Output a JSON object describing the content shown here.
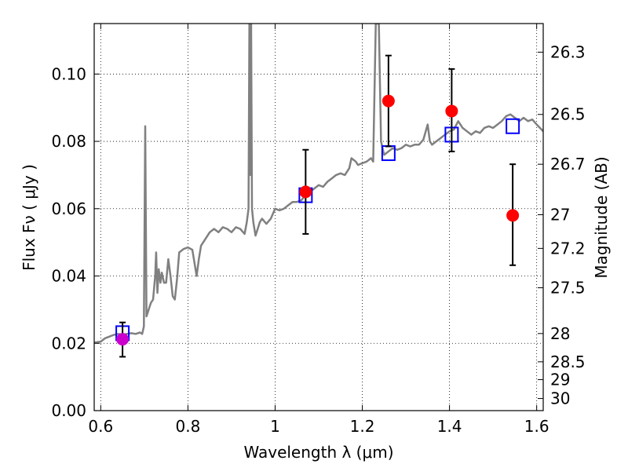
{
  "chart_data": {
    "type": "scatter",
    "title": "",
    "xlabel": "Wavelength  λ (μm)",
    "ylabel": "Flux  Fν  ( μJy )",
    "ylabel_right": "Magnitude (AB)",
    "xlim": [
      0.585,
      1.615
    ],
    "ylim": [
      0.0,
      0.115
    ],
    "grid": true,
    "x_ticks": [
      {
        "value": 0.6,
        "label": "0.6"
      },
      {
        "value": 0.8,
        "label": "0.8"
      },
      {
        "value": 1.0,
        "label": "1"
      },
      {
        "value": 1.2,
        "label": "1.2"
      },
      {
        "value": 1.4,
        "label": "1.4"
      },
      {
        "value": 1.6,
        "label": "1.6"
      }
    ],
    "y_ticks": [
      {
        "value": 0.0,
        "label": "0.00"
      },
      {
        "value": 0.02,
        "label": "0.02"
      },
      {
        "value": 0.04,
        "label": "0.04"
      },
      {
        "value": 0.06,
        "label": "0.06"
      },
      {
        "value": 0.08,
        "label": "0.08"
      },
      {
        "value": 0.1,
        "label": "0.10"
      }
    ],
    "right_ticks": [
      {
        "flux": 0.1065,
        "label": "26.3"
      },
      {
        "flux": 0.088,
        "label": "26.5"
      },
      {
        "flux": 0.0732,
        "label": "26.7"
      },
      {
        "flux": 0.0582,
        "label": "27"
      },
      {
        "flux": 0.0482,
        "label": "27.2"
      },
      {
        "flux": 0.0365,
        "label": "27.5"
      },
      {
        "flux": 0.0229,
        "label": "28"
      },
      {
        "flux": 0.0145,
        "label": "28.5"
      },
      {
        "flux": 0.0092,
        "label": "29"
      },
      {
        "flux": 0.0036,
        "label": "30"
      }
    ],
    "series": [
      {
        "kind": "spectrum",
        "color": "#808080",
        "points": [
          [
            0.585,
            0.0202
          ],
          [
            0.6,
            0.0205
          ],
          [
            0.61,
            0.0215
          ],
          [
            0.62,
            0.022
          ],
          [
            0.63,
            0.0225
          ],
          [
            0.64,
            0.0228
          ],
          [
            0.65,
            0.0226
          ],
          [
            0.66,
            0.0228
          ],
          [
            0.67,
            0.023
          ],
          [
            0.68,
            0.0228
          ],
          [
            0.69,
            0.0232
          ],
          [
            0.695,
            0.0228
          ],
          [
            0.699,
            0.025
          ],
          [
            0.702,
            0.0845
          ],
          [
            0.705,
            0.028
          ],
          [
            0.71,
            0.03
          ],
          [
            0.715,
            0.032
          ],
          [
            0.72,
            0.033
          ],
          [
            0.725,
            0.04
          ],
          [
            0.727,
            0.047
          ],
          [
            0.73,
            0.035
          ],
          [
            0.733,
            0.042
          ],
          [
            0.737,
            0.038
          ],
          [
            0.74,
            0.041
          ],
          [
            0.745,
            0.038
          ],
          [
            0.75,
            0.038
          ],
          [
            0.755,
            0.045
          ],
          [
            0.76,
            0.04
          ],
          [
            0.765,
            0.034
          ],
          [
            0.77,
            0.033
          ],
          [
            0.775,
            0.039
          ],
          [
            0.78,
            0.047
          ],
          [
            0.79,
            0.048
          ],
          [
            0.8,
            0.0485
          ],
          [
            0.81,
            0.0478
          ],
          [
            0.815,
            0.044
          ],
          [
            0.82,
            0.04
          ],
          [
            0.825,
            0.045
          ],
          [
            0.83,
            0.049
          ],
          [
            0.84,
            0.051
          ],
          [
            0.85,
            0.053
          ],
          [
            0.86,
            0.054
          ],
          [
            0.87,
            0.053
          ],
          [
            0.88,
            0.0545
          ],
          [
            0.89,
            0.054
          ],
          [
            0.9,
            0.053
          ],
          [
            0.91,
            0.0545
          ],
          [
            0.92,
            0.054
          ],
          [
            0.93,
            0.0525
          ],
          [
            0.935,
            0.056
          ],
          [
            0.939,
            0.06
          ],
          [
            0.941,
            0.115
          ],
          [
            0.943,
            0.07
          ],
          [
            0.945,
            0.115
          ],
          [
            0.947,
            0.06
          ],
          [
            0.95,
            0.056
          ],
          [
            0.955,
            0.052
          ],
          [
            0.96,
            0.054
          ],
          [
            0.965,
            0.056
          ],
          [
            0.97,
            0.057
          ],
          [
            0.98,
            0.0555
          ],
          [
            0.99,
            0.057
          ],
          [
            1.0,
            0.06
          ],
          [
            1.01,
            0.0595
          ],
          [
            1.02,
            0.06
          ],
          [
            1.03,
            0.061
          ],
          [
            1.04,
            0.062
          ],
          [
            1.05,
            0.062
          ],
          [
            1.06,
            0.0625
          ],
          [
            1.07,
            0.064
          ],
          [
            1.08,
            0.065
          ],
          [
            1.09,
            0.066
          ],
          [
            1.1,
            0.067
          ],
          [
            1.11,
            0.0665
          ],
          [
            1.12,
            0.068
          ],
          [
            1.13,
            0.069
          ],
          [
            1.14,
            0.07
          ],
          [
            1.15,
            0.0705
          ],
          [
            1.16,
            0.07
          ],
          [
            1.17,
            0.072
          ],
          [
            1.175,
            0.075
          ],
          [
            1.185,
            0.074
          ],
          [
            1.19,
            0.073
          ],
          [
            1.2,
            0.0735
          ],
          [
            1.21,
            0.074
          ],
          [
            1.22,
            0.075
          ],
          [
            1.225,
            0.074
          ],
          [
            1.231,
            0.115
          ],
          [
            1.238,
            0.115
          ],
          [
            1.243,
            0.08
          ],
          [
            1.25,
            0.076
          ],
          [
            1.26,
            0.077
          ],
          [
            1.27,
            0.078
          ],
          [
            1.28,
            0.0775
          ],
          [
            1.29,
            0.078
          ],
          [
            1.3,
            0.079
          ],
          [
            1.31,
            0.0785
          ],
          [
            1.32,
            0.079
          ],
          [
            1.33,
            0.079
          ],
          [
            1.34,
            0.0805
          ],
          [
            1.35,
            0.085
          ],
          [
            1.355,
            0.08
          ],
          [
            1.36,
            0.079
          ],
          [
            1.37,
            0.08
          ],
          [
            1.38,
            0.081
          ],
          [
            1.39,
            0.082
          ],
          [
            1.4,
            0.083
          ],
          [
            1.41,
            0.0835
          ],
          [
            1.42,
            0.086
          ],
          [
            1.43,
            0.084
          ],
          [
            1.44,
            0.083
          ],
          [
            1.45,
            0.082
          ],
          [
            1.46,
            0.083
          ],
          [
            1.47,
            0.0825
          ],
          [
            1.48,
            0.084
          ],
          [
            1.49,
            0.0845
          ],
          [
            1.5,
            0.084
          ],
          [
            1.51,
            0.085
          ],
          [
            1.52,
            0.086
          ],
          [
            1.53,
            0.0875
          ],
          [
            1.54,
            0.088
          ],
          [
            1.55,
            0.087
          ],
          [
            1.56,
            0.086
          ],
          [
            1.57,
            0.087
          ],
          [
            1.58,
            0.086
          ],
          [
            1.59,
            0.0865
          ],
          [
            1.6,
            0.085
          ],
          [
            1.615,
            0.083
          ]
        ]
      },
      {
        "kind": "model_photometry",
        "marker": "open-square",
        "color": "#0000ff",
        "points": [
          [
            0.65,
            0.023
          ],
          [
            1.07,
            0.064
          ],
          [
            1.26,
            0.0765
          ],
          [
            1.405,
            0.082
          ],
          [
            1.545,
            0.0845
          ]
        ]
      },
      {
        "kind": "measured_photometry",
        "marker": "filled-circle",
        "points": [
          {
            "x": 0.65,
            "y": 0.0212,
            "err_low": 0.0052,
            "err_high": 0.005,
            "color": "#cc00cc"
          },
          {
            "x": 1.07,
            "y": 0.065,
            "err_low": 0.0125,
            "err_high": 0.0125,
            "color": "#ff0000"
          },
          {
            "x": 1.26,
            "y": 0.092,
            "err_low": 0.0135,
            "err_high": 0.0135,
            "color": "#ff0000"
          },
          {
            "x": 1.405,
            "y": 0.089,
            "err_low": 0.012,
            "err_high": 0.0125,
            "color": "#ff0000"
          },
          {
            "x": 1.545,
            "y": 0.058,
            "err_low": 0.0148,
            "err_high": 0.0152,
            "color": "#ff0000"
          }
        ]
      }
    ]
  }
}
